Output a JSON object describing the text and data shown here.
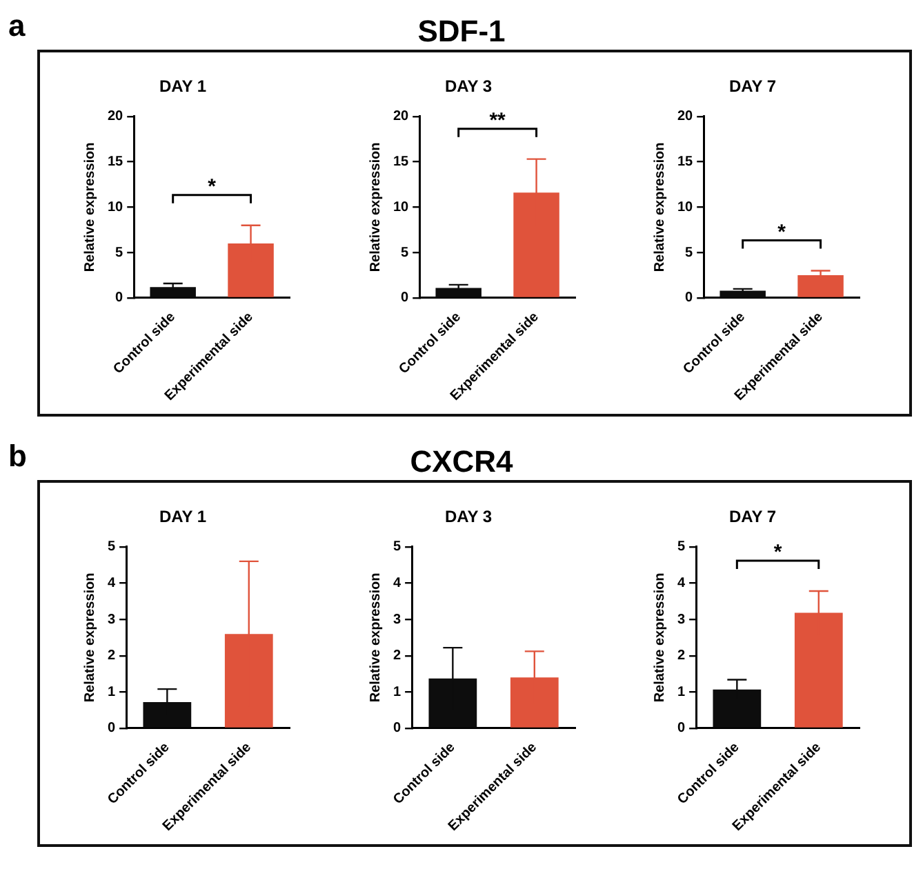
{
  "chart_data": [
    {
      "type": "other",
      "title": "SDF-1",
      "annotations": [
        "a"
      ]
    },
    {
      "type": "bar",
      "title": "DAY 1",
      "ylabel": "Relative expression",
      "categories": [
        "Control side",
        "Experimental side"
      ],
      "values": [
        1.2,
        6.0
      ],
      "errors": [
        0.4,
        2.0
      ],
      "colors": [
        "#0d0d0d",
        "#e0533b"
      ],
      "ylim": [
        0,
        20
      ],
      "yticks": [
        0,
        5,
        10,
        15,
        20
      ],
      "annotations": [
        "*"
      ]
    },
    {
      "type": "bar",
      "title": "DAY 3",
      "ylabel": "Relative expression",
      "categories": [
        "Control side",
        "Experimental side"
      ],
      "values": [
        1.1,
        11.6
      ],
      "errors": [
        0.35,
        3.7
      ],
      "colors": [
        "#0d0d0d",
        "#e0533b"
      ],
      "ylim": [
        0,
        20
      ],
      "yticks": [
        0,
        5,
        10,
        15,
        20
      ],
      "annotations": [
        "**"
      ]
    },
    {
      "type": "bar",
      "title": "DAY 7",
      "ylabel": "Relative expression",
      "categories": [
        "Control side",
        "Experimental side"
      ],
      "values": [
        0.8,
        2.5
      ],
      "errors": [
        0.2,
        0.5
      ],
      "colors": [
        "#0d0d0d",
        "#e0533b"
      ],
      "ylim": [
        0,
        20
      ],
      "yticks": [
        0,
        5,
        10,
        15,
        20
      ],
      "annotations": [
        "*"
      ]
    },
    {
      "type": "other",
      "title": "CXCR4",
      "annotations": [
        "b"
      ]
    },
    {
      "type": "bar",
      "title": "DAY 1",
      "ylabel": "Relative expression",
      "categories": [
        "Control side",
        "Experimental side"
      ],
      "values": [
        0.72,
        2.6
      ],
      "errors": [
        0.36,
        2.0
      ],
      "colors": [
        "#0d0d0d",
        "#e0533b"
      ],
      "ylim": [
        0,
        5
      ],
      "yticks": [
        0,
        1,
        2,
        3,
        4,
        5
      ]
    },
    {
      "type": "bar",
      "title": "DAY 3",
      "ylabel": "Relative expression",
      "categories": [
        "Control side",
        "Experimental side"
      ],
      "values": [
        1.37,
        1.4
      ],
      "errors": [
        0.85,
        0.72
      ],
      "colors": [
        "#0d0d0d",
        "#e0533b"
      ],
      "ylim": [
        0,
        5
      ],
      "yticks": [
        0,
        1,
        2,
        3,
        4,
        5
      ]
    },
    {
      "type": "bar",
      "title": "DAY 7",
      "ylabel": "Relative expression",
      "categories": [
        "Control side",
        "Experimental side"
      ],
      "values": [
        1.07,
        3.18
      ],
      "errors": [
        0.27,
        0.6
      ],
      "colors": [
        "#0d0d0d",
        "#e0533b"
      ],
      "ylim": [
        0,
        5
      ],
      "yticks": [
        0,
        1,
        2,
        3,
        4,
        5
      ],
      "annotations": [
        "*"
      ]
    }
  ]
}
